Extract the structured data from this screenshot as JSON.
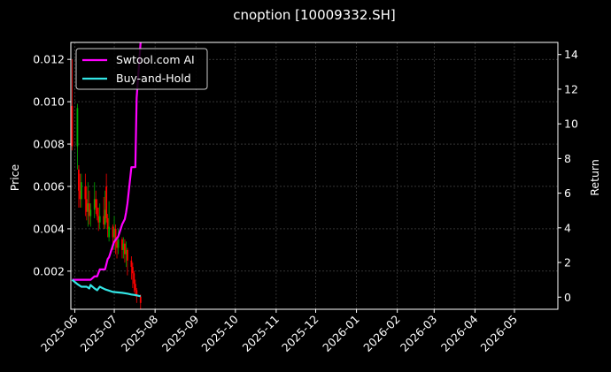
{
  "chart_data": {
    "type": "line",
    "title": "cnoption [10009332.SH]",
    "xlabel": "",
    "ylabel": "Price",
    "y2label": "Return",
    "background": "#000000",
    "grid": true,
    "legend_position": "top-left",
    "x_ticks": [
      "2025-06",
      "2025-07",
      "2025-08",
      "2025-09",
      "2025-10",
      "2025-11",
      "2025-12",
      "2026-01",
      "2026-02",
      "2026-03",
      "2026-04",
      "2026-05"
    ],
    "x_range": [
      "2025-05-29",
      "2026-06-03"
    ],
    "y_ticks": [
      "0.002",
      "0.004",
      "0.006",
      "0.008",
      "0.010",
      "0.012"
    ],
    "ylim": [
      0.0002,
      0.0128
    ],
    "y2_ticks": [
      "0",
      "2",
      "4",
      "6",
      "8",
      "10",
      "12",
      "14"
    ],
    "y2lim": [
      -0.7,
      14.7
    ],
    "colors": {
      "up": "#00aa00",
      "down": "#ff0000",
      "ai": "#ff00ff",
      "hold": "#33e6e6"
    },
    "candles": [
      {
        "date": "2025-05-30",
        "open": 0.0098,
        "close": 0.0079,
        "high": 0.012,
        "low": 0.0077
      },
      {
        "date": "2025-06-03",
        "open": 0.0079,
        "close": 0.0097,
        "high": 0.0099,
        "low": 0.0068
      },
      {
        "date": "2025-06-04",
        "open": 0.0068,
        "close": 0.0058,
        "high": 0.007,
        "low": 0.005
      },
      {
        "date": "2025-06-05",
        "open": 0.0058,
        "close": 0.0054,
        "high": 0.0066,
        "low": 0.005
      },
      {
        "date": "2025-06-06",
        "open": 0.0054,
        "close": 0.0062,
        "high": 0.0066,
        "low": 0.005
      },
      {
        "date": "2025-06-09",
        "open": 0.006,
        "close": 0.0054,
        "high": 0.0066,
        "low": 0.0046
      },
      {
        "date": "2025-06-10",
        "open": 0.0054,
        "close": 0.0048,
        "high": 0.006,
        "low": 0.0044
      },
      {
        "date": "2025-06-11",
        "open": 0.0048,
        "close": 0.0052,
        "high": 0.0062,
        "low": 0.0041
      },
      {
        "date": "2025-06-12",
        "open": 0.0052,
        "close": 0.0046,
        "high": 0.0058,
        "low": 0.0042
      },
      {
        "date": "2025-06-13",
        "open": 0.0046,
        "close": 0.0049,
        "high": 0.0052,
        "low": 0.0041
      },
      {
        "date": "2025-06-16",
        "open": 0.0049,
        "close": 0.0054,
        "high": 0.0062,
        "low": 0.0045
      },
      {
        "date": "2025-06-17",
        "open": 0.0054,
        "close": 0.005,
        "high": 0.0058,
        "low": 0.0047
      },
      {
        "date": "2025-06-18",
        "open": 0.005,
        "close": 0.0046,
        "high": 0.0054,
        "low": 0.0044
      },
      {
        "date": "2025-06-19",
        "open": 0.0046,
        "close": 0.0043,
        "high": 0.005,
        "low": 0.0039
      },
      {
        "date": "2025-06-20",
        "open": 0.0043,
        "close": 0.0046,
        "high": 0.0052,
        "low": 0.004
      },
      {
        "date": "2025-06-23",
        "open": 0.0046,
        "close": 0.0042,
        "high": 0.0055,
        "low": 0.004
      },
      {
        "date": "2025-06-24",
        "open": 0.0042,
        "close": 0.0049,
        "high": 0.0058,
        "low": 0.004
      },
      {
        "date": "2025-06-25",
        "open": 0.006,
        "close": 0.0045,
        "high": 0.0066,
        "low": 0.0043
      },
      {
        "date": "2025-06-26",
        "open": 0.0045,
        "close": 0.004,
        "high": 0.0047,
        "low": 0.0036
      },
      {
        "date": "2025-06-27",
        "open": 0.0036,
        "close": 0.0041,
        "high": 0.0053,
        "low": 0.0034
      },
      {
        "date": "2025-06-30",
        "open": 0.0041,
        "close": 0.0036,
        "high": 0.0042,
        "low": 0.003
      },
      {
        "date": "2025-07-01",
        "open": 0.0036,
        "close": 0.004,
        "high": 0.0046,
        "low": 0.003
      },
      {
        "date": "2025-07-02",
        "open": 0.004,
        "close": 0.0034,
        "high": 0.0042,
        "low": 0.0028
      },
      {
        "date": "2025-07-03",
        "open": 0.0034,
        "close": 0.0031,
        "high": 0.0036,
        "low": 0.0026
      },
      {
        "date": "2025-07-04",
        "open": 0.0031,
        "close": 0.0035,
        "high": 0.004,
        "low": 0.0028
      },
      {
        "date": "2025-07-07",
        "open": 0.0035,
        "close": 0.003,
        "high": 0.0036,
        "low": 0.0026
      },
      {
        "date": "2025-07-08",
        "open": 0.003,
        "close": 0.0033,
        "high": 0.0036,
        "low": 0.0026
      },
      {
        "date": "2025-07-09",
        "open": 0.0033,
        "close": 0.0028,
        "high": 0.0035,
        "low": 0.0024
      },
      {
        "date": "2025-07-10",
        "open": 0.0028,
        "close": 0.003,
        "high": 0.0034,
        "low": 0.0022
      },
      {
        "date": "2025-07-11",
        "open": 0.003,
        "close": 0.0025,
        "high": 0.0031,
        "low": 0.0018
      },
      {
        "date": "2025-07-14",
        "open": 0.0025,
        "close": 0.0022,
        "high": 0.0027,
        "low": 0.0016
      },
      {
        "date": "2025-07-15",
        "open": 0.0022,
        "close": 0.0019,
        "high": 0.0024,
        "low": 0.0012
      },
      {
        "date": "2025-07-16",
        "open": 0.0019,
        "close": 0.0014,
        "high": 0.002,
        "low": 0.001
      },
      {
        "date": "2025-07-17",
        "open": 0.0014,
        "close": 0.0011,
        "high": 0.0016,
        "low": 0.0008
      },
      {
        "date": "2025-07-18",
        "open": 0.0011,
        "close": 0.0008,
        "high": 0.0012,
        "low": 0.0005
      },
      {
        "date": "2025-07-21",
        "open": 0.0008,
        "close": 0.0005,
        "high": 0.0009,
        "low": 0.0002
      }
    ],
    "series": [
      {
        "name": "Swtool.com AI",
        "axis": "right",
        "color": "#ff00ff",
        "points": [
          {
            "x": "2025-05-30",
            "y": 1.0
          },
          {
            "x": "2025-06-02",
            "y": 1.0
          },
          {
            "x": "2025-06-09",
            "y": 1.0
          },
          {
            "x": "2025-06-13",
            "y": 1.0
          },
          {
            "x": "2025-06-16",
            "y": 1.2
          },
          {
            "x": "2025-06-18",
            "y": 1.2
          },
          {
            "x": "2025-06-20",
            "y": 1.6
          },
          {
            "x": "2025-06-24",
            "y": 1.6
          },
          {
            "x": "2025-06-26",
            "y": 2.2
          },
          {
            "x": "2025-06-27",
            "y": 2.3
          },
          {
            "x": "2025-06-30",
            "y": 3.0
          },
          {
            "x": "2025-07-01",
            "y": 3.2
          },
          {
            "x": "2025-07-03",
            "y": 3.4
          },
          {
            "x": "2025-07-04",
            "y": 3.5
          },
          {
            "x": "2025-07-07",
            "y": 4.2
          },
          {
            "x": "2025-07-09",
            "y": 4.5
          },
          {
            "x": "2025-07-10",
            "y": 4.9
          },
          {
            "x": "2025-07-11",
            "y": 5.4
          },
          {
            "x": "2025-07-14",
            "y": 7.5
          },
          {
            "x": "2025-07-17",
            "y": 7.5
          },
          {
            "x": "2025-07-18",
            "y": 11.5
          },
          {
            "x": "2025-07-21",
            "y": 14.7
          }
        ]
      },
      {
        "name": "Buy-and-Hold",
        "axis": "right",
        "color": "#33e6e6",
        "points": [
          {
            "x": "2025-05-30",
            "y": 1.0
          },
          {
            "x": "2025-06-03",
            "y": 0.75
          },
          {
            "x": "2025-06-06",
            "y": 0.6
          },
          {
            "x": "2025-06-10",
            "y": 0.6
          },
          {
            "x": "2025-06-12",
            "y": 0.5
          },
          {
            "x": "2025-06-13",
            "y": 0.7
          },
          {
            "x": "2025-06-16",
            "y": 0.5
          },
          {
            "x": "2025-06-18",
            "y": 0.4
          },
          {
            "x": "2025-06-20",
            "y": 0.6
          },
          {
            "x": "2025-06-24",
            "y": 0.45
          },
          {
            "x": "2025-06-30",
            "y": 0.3
          },
          {
            "x": "2025-07-07",
            "y": 0.25
          },
          {
            "x": "2025-07-11",
            "y": 0.2
          },
          {
            "x": "2025-07-14",
            "y": 0.15
          },
          {
            "x": "2025-07-17",
            "y": 0.12
          },
          {
            "x": "2025-07-21",
            "y": 0.05
          }
        ]
      }
    ]
  }
}
